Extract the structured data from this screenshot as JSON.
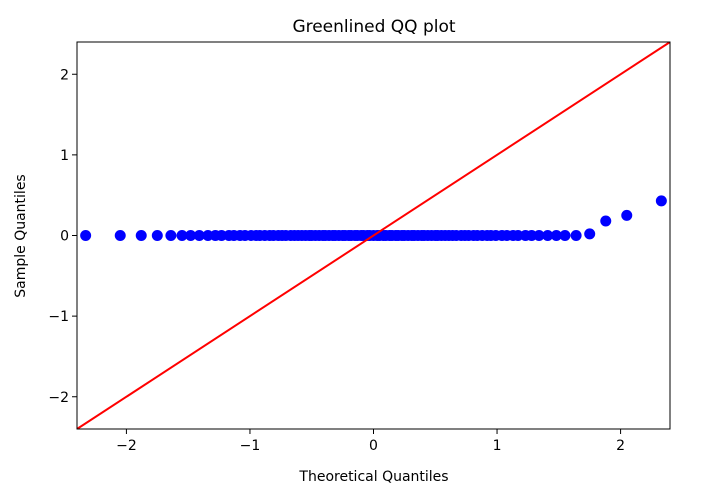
{
  "chart_data": {
    "type": "scatter",
    "title": "Greenlined QQ plot",
    "xlabel": "Theoretical Quantiles",
    "ylabel": "Sample Quantiles",
    "xlim": [
      -2.4,
      2.4
    ],
    "ylim": [
      -2.4,
      2.4
    ],
    "xticks": [
      -2,
      -1,
      0,
      1,
      2
    ],
    "yticks": [
      -2,
      -1,
      0,
      1,
      2
    ],
    "xtick_labels": [
      "−2",
      "−1",
      "0",
      "1",
      "2"
    ],
    "ytick_labels": [
      "−2",
      "−1",
      "0",
      "1",
      "2"
    ],
    "grid": false,
    "series": [
      {
        "kind": "points",
        "color": "#0000ff",
        "x": [
          -2.33,
          -2.05,
          -1.88,
          -1.75,
          -1.64,
          -1.55,
          -1.48,
          -1.41,
          -1.34,
          -1.28,
          -1.23,
          -1.17,
          -1.13,
          -1.08,
          -1.04,
          -0.99,
          -0.95,
          -0.92,
          -0.88,
          -0.84,
          -0.81,
          -0.77,
          -0.74,
          -0.71,
          -0.67,
          -0.64,
          -0.61,
          -0.58,
          -0.55,
          -0.52,
          -0.5,
          -0.47,
          -0.44,
          -0.41,
          -0.39,
          -0.36,
          -0.33,
          -0.31,
          -0.28,
          -0.25,
          -0.23,
          -0.2,
          -0.18,
          -0.15,
          -0.13,
          -0.1,
          -0.08,
          -0.05,
          -0.03,
          0.0,
          0.03,
          0.05,
          0.08,
          0.1,
          0.13,
          0.15,
          0.18,
          0.2,
          0.23,
          0.25,
          0.28,
          0.31,
          0.33,
          0.36,
          0.39,
          0.41,
          0.44,
          0.47,
          0.5,
          0.52,
          0.55,
          0.58,
          0.61,
          0.64,
          0.67,
          0.71,
          0.74,
          0.77,
          0.81,
          0.84,
          0.88,
          0.92,
          0.95,
          0.99,
          1.04,
          1.08,
          1.13,
          1.17,
          1.23,
          1.28,
          1.34,
          1.41,
          1.48,
          1.55,
          1.64,
          1.75,
          1.88,
          2.05,
          2.33
        ],
        "y": [
          0,
          0,
          0,
          0,
          0,
          0,
          0,
          0,
          0,
          0,
          0,
          0,
          0,
          0,
          0,
          0,
          0,
          0,
          0,
          0,
          0,
          0,
          0,
          0,
          0,
          0,
          0,
          0,
          0,
          0,
          0,
          0,
          0,
          0,
          0,
          0,
          0,
          0,
          0,
          0,
          0,
          0,
          0,
          0,
          0,
          0,
          0,
          0,
          0,
          0,
          0,
          0,
          0,
          0,
          0,
          0,
          0,
          0,
          0,
          0,
          0,
          0,
          0,
          0,
          0,
          0,
          0,
          0,
          0,
          0,
          0,
          0,
          0,
          0,
          0,
          0,
          0,
          0,
          0,
          0,
          0,
          0,
          0,
          0,
          0,
          0,
          0,
          0,
          0,
          0,
          0,
          0,
          0,
          0,
          0,
          0.02,
          0.18,
          0.25,
          0.43
        ]
      },
      {
        "kind": "reference-line",
        "color": "#ff0000",
        "x": [
          -2.4,
          2.4
        ],
        "y": [
          -2.4,
          2.4
        ]
      }
    ]
  }
}
